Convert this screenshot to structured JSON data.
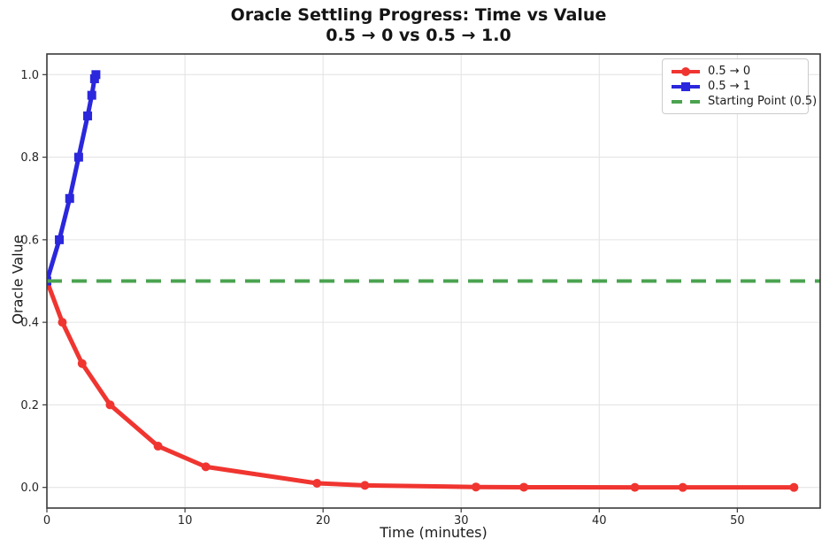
{
  "chart_data": {
    "type": "line",
    "title": "Oracle Settling Progress: Time vs Value",
    "subtitle": "0.5 → 0 vs 0.5 → 1.0",
    "xlabel": "Time (minutes)",
    "ylabel": "Oracle Value",
    "xlim": [
      0,
      56
    ],
    "ylim": [
      -0.05,
      1.05
    ],
    "xticks": [
      0,
      10,
      20,
      30,
      40,
      50
    ],
    "xtick_labels": [
      "0",
      "10",
      "20",
      "30",
      "40",
      "50"
    ],
    "yticks": [
      0.0,
      0.2,
      0.4,
      0.6,
      0.8,
      1.0
    ],
    "ytick_labels": [
      "0.0",
      "0.2",
      "0.4",
      "0.6",
      "0.8",
      "1.0"
    ],
    "grid": true,
    "grid_color": "#e4e4e4",
    "axis_color": "#3a3a3a",
    "legend_position": "upper-right",
    "series": [
      {
        "name": "0.5 → 0",
        "type": "line",
        "color": "#f03530",
        "marker": "circle",
        "line_width": 5,
        "x": [
          0,
          1.12,
          2.55,
          4.58,
          8.05,
          11.51,
          19.56,
          23.03,
          31.07,
          34.54,
          42.58,
          46.05,
          54.1
        ],
        "y": [
          0.5,
          0.4,
          0.3,
          0.2,
          0.1,
          0.05,
          0.01,
          0.005,
          0.001,
          0.0005,
          0.0001,
          5e-05,
          1e-05
        ]
      },
      {
        "name": "0.5 → 1",
        "type": "line",
        "color": "#2b27dc",
        "marker": "square",
        "line_width": 5,
        "x": [
          0,
          0.9,
          1.65,
          2.3,
          2.95,
          3.25,
          3.45,
          3.55
        ],
        "y": [
          0.5,
          0.6,
          0.7,
          0.8,
          0.9,
          0.95,
          0.99,
          1.0
        ]
      },
      {
        "name": "Starting Point (0.5)",
        "type": "hline",
        "color": "#4ba350",
        "style": "dashed",
        "line_width": 4,
        "value": 0.5
      }
    ]
  }
}
